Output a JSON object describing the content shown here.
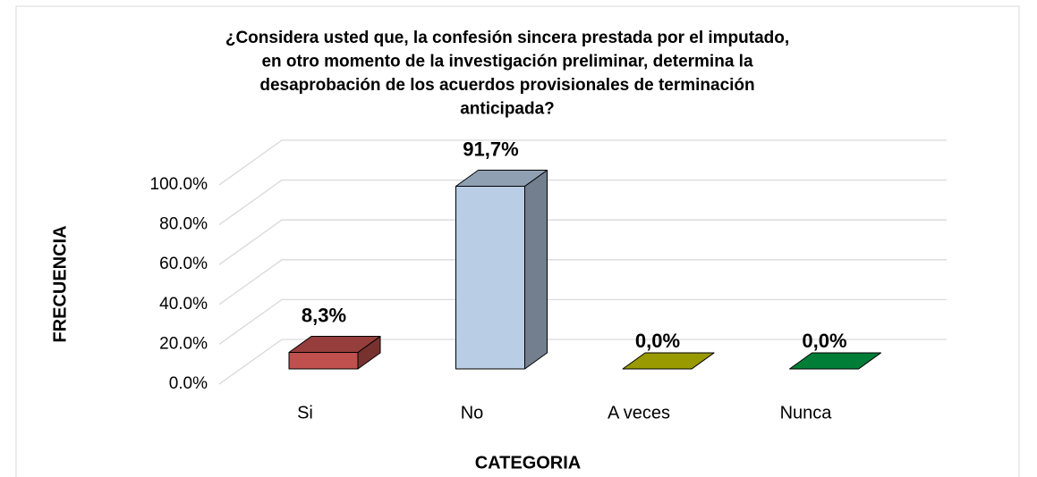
{
  "chart_data": {
    "type": "bar3d",
    "title": [
      "¿Considera usted que, la confesión sincera prestada por el imputado,",
      "en otro momento de la investigación preliminar, determina la",
      "desaprobación de los acuerdos provisionales de terminación",
      "anticipada?"
    ],
    "x_label": "CATEGORIA",
    "y_label": "FRECUENCIA",
    "categories": [
      "Si",
      "No",
      "A veces",
      "Nunca"
    ],
    "values": [
      8.3,
      91.7,
      0,
      0
    ],
    "value_labels": [
      "8,3%",
      "91,7%",
      "0,0%",
      "0,0%"
    ],
    "colors": [
      "#c0504d",
      "#b9cde5",
      "#c4c400",
      "#00a046"
    ],
    "ylim": [
      0,
      100
    ],
    "yticks": [
      {
        "value": 0,
        "label": "0.0%"
      },
      {
        "value": 20,
        "label": "20.0%"
      },
      {
        "value": 40,
        "label": "40.0%"
      },
      {
        "value": 60,
        "label": "60.0%"
      },
      {
        "value": 80,
        "label": "80.0%"
      },
      {
        "value": 100,
        "label": "100.0%"
      }
    ],
    "grid": true
  }
}
